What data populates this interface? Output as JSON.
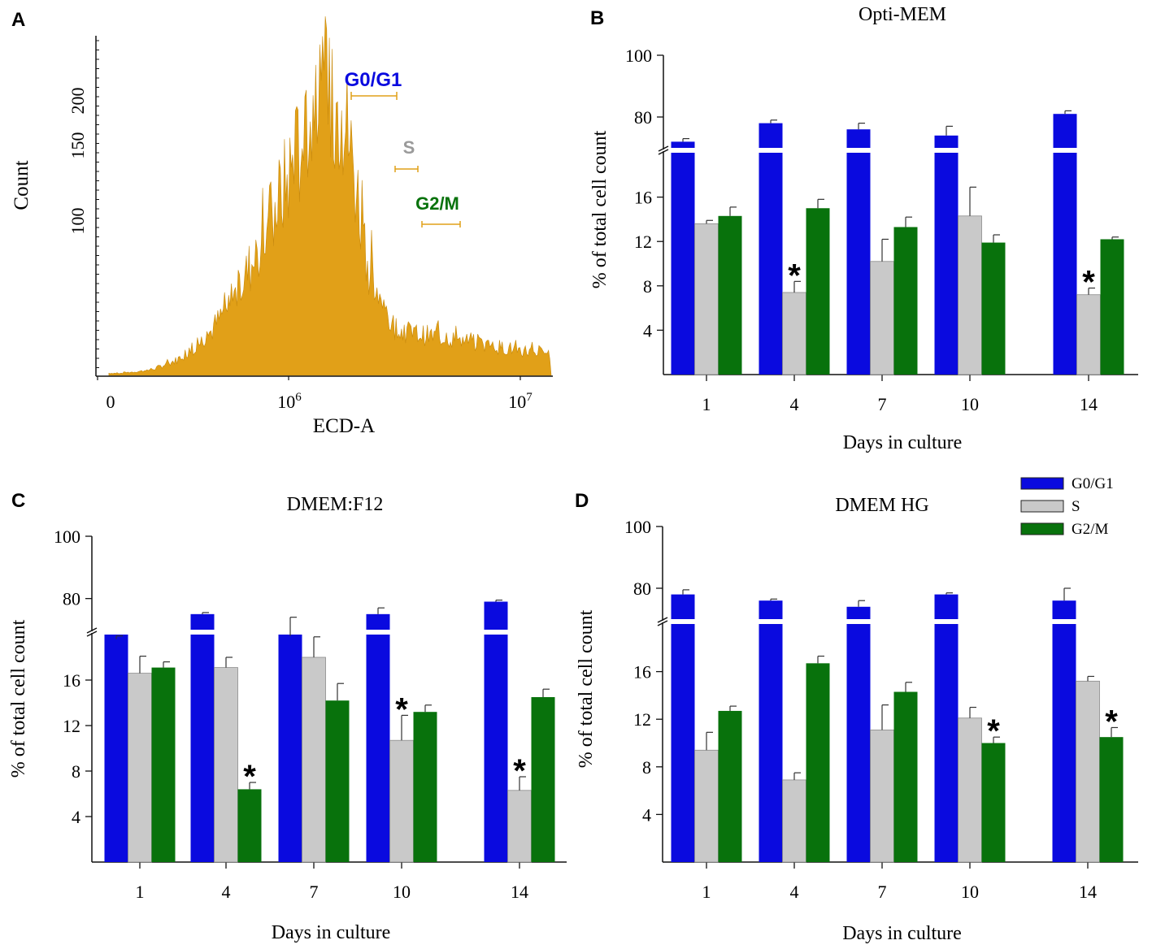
{
  "colors": {
    "g0g1": "#0a0adf",
    "s": "#c9c9c9",
    "g2m": "#08720c",
    "hist": "#e1a018",
    "hist_dark": "#c98a0c",
    "axis": "#111111",
    "s_gate": "#9a9a9a"
  },
  "legend": {
    "items": [
      {
        "label": "G0/G1",
        "color": "#0a0adf"
      },
      {
        "label": "S",
        "color": "#c9c9c9"
      },
      {
        "label": "G2/M",
        "color": "#08720c"
      }
    ]
  },
  "chart_data": [
    {
      "panel": "A",
      "type": "area",
      "title": "",
      "xlabel": "ECD-A",
      "ylabel": "Count",
      "x_tick_labels": [
        "0",
        "10^6",
        "10^7"
      ],
      "y_tick_labels": [
        "100",
        "150",
        "200"
      ],
      "gates": [
        {
          "label": "G0/G1",
          "color": "#0a0adf"
        },
        {
          "label": "S",
          "color": "#9a9a9a"
        },
        {
          "label": "G2/M",
          "color": "#08720c"
        }
      ],
      "x": [
        0.1,
        0.2,
        0.3,
        0.4,
        0.5,
        0.6,
        0.7,
        0.8,
        0.9,
        1.0,
        1.2,
        1.4,
        1.6,
        1.8,
        1.9,
        2.0,
        2.1,
        2.2,
        2.3,
        2.4,
        2.5,
        2.6,
        2.7,
        2.8,
        3.0,
        3.2,
        3.4,
        3.6,
        3.8,
        4.0
      ],
      "values": [
        2,
        2,
        3,
        4,
        6,
        10,
        14,
        22,
        30,
        40,
        70,
        110,
        160,
        210,
        235,
        245,
        250,
        225,
        160,
        95,
        60,
        45,
        40,
        38,
        35,
        32,
        28,
        25,
        22,
        20
      ]
    },
    {
      "panel": "B",
      "type": "bar",
      "title": "Opti-MEM",
      "xlabel": "Days in culture",
      "ylabel": "% of total cell count",
      "categories": [
        "1",
        "4",
        "7",
        "10",
        "14"
      ],
      "y_ticks_lower": [
        4,
        8,
        12,
        16
      ],
      "y_ticks_upper": [
        80,
        100
      ],
      "series": [
        {
          "name": "G0/G1",
          "values": [
            72,
            78,
            76,
            74,
            81
          ],
          "errors": [
            1,
            1,
            2,
            3,
            1
          ]
        },
        {
          "name": "S",
          "values": [
            13.6,
            7.4,
            10.2,
            14.3,
            7.2
          ],
          "errors": [
            0.3,
            1.0,
            2.0,
            2.6,
            0.6
          ]
        },
        {
          "name": "G2/M",
          "values": [
            14.3,
            15.0,
            13.3,
            11.9,
            12.2
          ],
          "errors": [
            0.8,
            0.8,
            0.9,
            0.7,
            0.2
          ]
        }
      ],
      "significance": [
        {
          "category": "4",
          "series": "S",
          "label": "*"
        },
        {
          "category": "14",
          "series": "S",
          "label": "*"
        }
      ]
    },
    {
      "panel": "C",
      "type": "bar",
      "title": "DMEM:F12",
      "xlabel": "Days in culture",
      "ylabel": "% of total cell count",
      "categories": [
        "1",
        "4",
        "7",
        "10",
        "14"
      ],
      "y_ticks_lower": [
        4,
        8,
        12,
        16
      ],
      "y_ticks_upper": [
        80,
        100
      ],
      "series": [
        {
          "name": "G0/G1",
          "values": [
            67,
            75,
            68,
            75,
            79
          ],
          "errors": [
            1,
            0.5,
            6,
            2,
            0.5
          ]
        },
        {
          "name": "S",
          "values": [
            16.6,
            17.1,
            18.0,
            10.7,
            6.3
          ],
          "errors": [
            1.5,
            0.9,
            1.8,
            2.2,
            1.2
          ]
        },
        {
          "name": "G2/M",
          "values": [
            17.1,
            6.4,
            14.2,
            13.2,
            14.5
          ],
          "errors": [
            0.5,
            0.6,
            1.5,
            0.6,
            0.7
          ]
        }
      ],
      "significance": [
        {
          "category": "4",
          "series": "G2/M",
          "label": "*"
        },
        {
          "category": "10",
          "series": "S",
          "label": "*"
        },
        {
          "category": "14",
          "series": "S",
          "label": "*"
        }
      ]
    },
    {
      "panel": "D",
      "type": "bar",
      "title": "DMEM HG",
      "xlabel": "Days in culture",
      "ylabel": "% of total cell count",
      "categories": [
        "1",
        "4",
        "7",
        "10",
        "14"
      ],
      "y_ticks_lower": [
        4,
        8,
        12,
        16
      ],
      "y_ticks_upper": [
        80,
        100
      ],
      "series": [
        {
          "name": "G0/G1",
          "values": [
            78,
            76,
            74,
            78,
            76
          ],
          "errors": [
            1.5,
            0.5,
            2,
            0.5,
            4
          ]
        },
        {
          "name": "S",
          "values": [
            9.4,
            6.9,
            11.1,
            12.1,
            15.2
          ],
          "errors": [
            1.5,
            0.6,
            2.1,
            0.9,
            0.4
          ]
        },
        {
          "name": "G2/M",
          "values": [
            12.7,
            16.7,
            14.3,
            10.0,
            10.5
          ],
          "errors": [
            0.4,
            0.6,
            0.8,
            0.5,
            0.8
          ]
        }
      ],
      "significance": [
        {
          "category": "10",
          "series": "G2/M",
          "label": "*"
        },
        {
          "category": "14",
          "series": "G2/M",
          "label": "*"
        }
      ]
    }
  ],
  "panel_labels": [
    "A",
    "B",
    "C",
    "D"
  ]
}
